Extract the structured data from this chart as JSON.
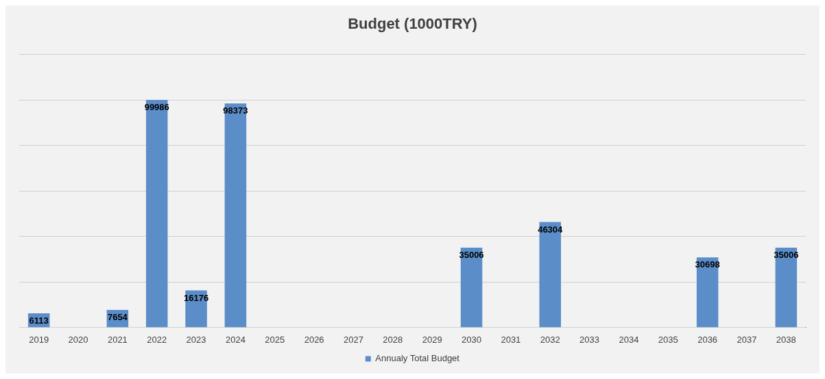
{
  "chart_data": {
    "type": "bar",
    "title": "Budget (1000TRY)",
    "categories": [
      "2019",
      "2020",
      "2021",
      "2022",
      "2023",
      "2024",
      "2025",
      "2026",
      "2027",
      "2028",
      "2029",
      "2030",
      "2031",
      "2032",
      "2033",
      "2034",
      "2035",
      "2036",
      "2037",
      "2038"
    ],
    "series": [
      {
        "name": "Annualy Total Budget",
        "color": "#5b8ec9",
        "values": [
          6113,
          null,
          7654,
          99986,
          16176,
          98373,
          null,
          null,
          null,
          null,
          null,
          35006,
          null,
          46304,
          null,
          null,
          null,
          30698,
          null,
          35006
        ]
      }
    ],
    "tick_labels": "x",
    "grid": "y",
    "legend": "bottom",
    "data_labels": true
  }
}
